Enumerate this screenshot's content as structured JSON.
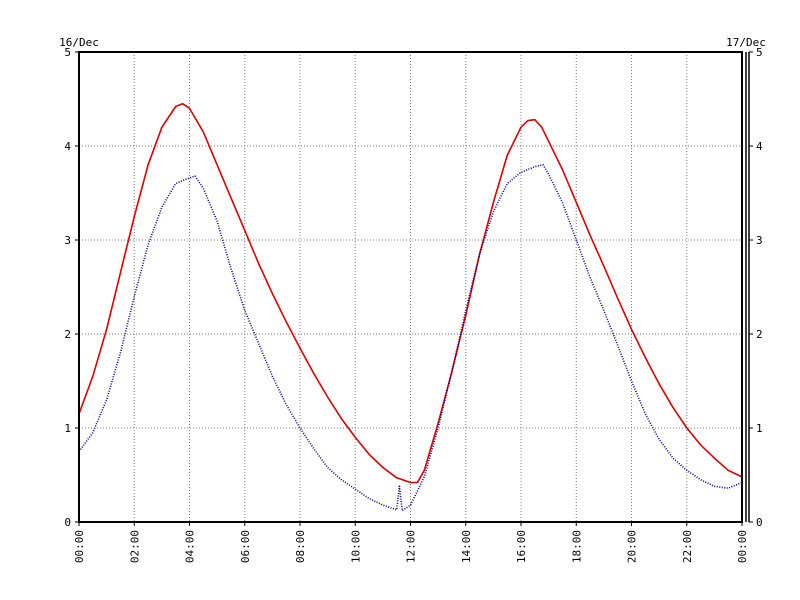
{
  "chart_data": {
    "type": "line",
    "dates": {
      "left": "16/Dec",
      "right": "17/Dec"
    },
    "x_tick_labels": [
      "00:00",
      "02:00",
      "04:00",
      "06:00",
      "08:00",
      "10:00",
      "12:00",
      "14:00",
      "16:00",
      "18:00",
      "20:00",
      "22:00",
      "00:00"
    ],
    "y_tick_labels": [
      "0",
      "1",
      "2",
      "3",
      "4",
      "5"
    ],
    "xlim_hours": [
      0,
      24
    ],
    "ylim": [
      0,
      5
    ],
    "grid": true,
    "grid_style": "dotted",
    "series": [
      {
        "color": "#dd0000",
        "style": "solid",
        "x_hours": [
          0,
          0.5,
          1,
          1.5,
          2,
          2.5,
          3,
          3.5,
          3.75,
          4,
          4.5,
          5,
          5.5,
          6,
          6.5,
          7,
          7.5,
          8,
          8.5,
          9,
          9.5,
          10,
          10.5,
          11,
          11.5,
          12,
          12.25,
          12.5,
          13,
          13.5,
          14,
          14.5,
          15,
          15.5,
          16,
          16.25,
          16.5,
          16.75,
          17,
          17.5,
          18,
          18.5,
          19,
          19.5,
          20,
          20.5,
          21,
          21.5,
          22,
          22.5,
          23,
          23.5,
          24
        ],
        "values": [
          1.15,
          1.55,
          2.05,
          2.65,
          3.25,
          3.8,
          4.2,
          4.42,
          4.45,
          4.4,
          4.15,
          3.8,
          3.45,
          3.1,
          2.75,
          2.43,
          2.13,
          1.85,
          1.58,
          1.33,
          1.1,
          0.9,
          0.72,
          0.58,
          0.47,
          0.42,
          0.42,
          0.55,
          1.05,
          1.6,
          2.2,
          2.85,
          3.4,
          3.9,
          4.2,
          4.27,
          4.28,
          4.2,
          4.05,
          3.75,
          3.4,
          3.05,
          2.72,
          2.38,
          2.05,
          1.75,
          1.47,
          1.22,
          1.0,
          0.82,
          0.68,
          0.55,
          0.48
        ]
      },
      {
        "color": "#000099",
        "style": "dotted",
        "x_hours": [
          0,
          0.5,
          1,
          1.5,
          2,
          2.5,
          3,
          3.5,
          3.9,
          4.2,
          4.5,
          5,
          5.5,
          6,
          6.5,
          7,
          7.5,
          8,
          8.5,
          9,
          9.5,
          10,
          10.5,
          11,
          11.5,
          11.6,
          11.7,
          12,
          12.5,
          13,
          13.5,
          14,
          14.5,
          15,
          15.5,
          16,
          16.5,
          16.8,
          17,
          17.5,
          18,
          18.5,
          19,
          19.5,
          20,
          20.5,
          21,
          21.5,
          22,
          22.5,
          23,
          23.5,
          24
        ],
        "values": [
          0.75,
          0.95,
          1.3,
          1.8,
          2.4,
          2.95,
          3.35,
          3.6,
          3.65,
          3.68,
          3.55,
          3.2,
          2.7,
          2.25,
          1.9,
          1.55,
          1.25,
          1.0,
          0.78,
          0.58,
          0.45,
          0.35,
          0.25,
          0.18,
          0.13,
          0.38,
          0.12,
          0.18,
          0.48,
          1.0,
          1.6,
          2.25,
          2.85,
          3.3,
          3.6,
          3.72,
          3.78,
          3.8,
          3.7,
          3.4,
          3.0,
          2.6,
          2.25,
          1.88,
          1.5,
          1.15,
          0.88,
          0.68,
          0.55,
          0.45,
          0.38,
          0.36,
          0.42
        ]
      }
    ]
  }
}
